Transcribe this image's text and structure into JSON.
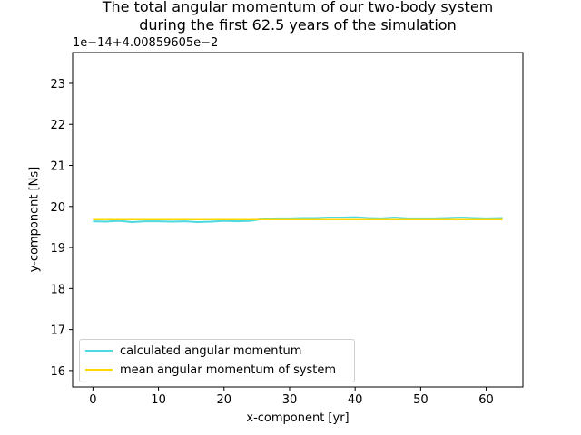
{
  "chart_data": {
    "type": "line",
    "title": [
      "The total angular momentum of our two-body system",
      "during the first 62.5 years of the simulation"
    ],
    "xlabel": "x-component [yr]",
    "ylabel": "y-component [Ns]",
    "y_offset_label": "1e−14+4.00859605e−2",
    "xlim": [
      -3.1,
      65.6
    ],
    "ylim": [
      15.6,
      23.75
    ],
    "xticks": [
      0,
      10,
      20,
      30,
      40,
      50,
      60
    ],
    "yticks": [
      16,
      17,
      18,
      19,
      20,
      21,
      22,
      23
    ],
    "grid": false,
    "legend_position": "lower-left",
    "series": [
      {
        "name": "calculated angular momentum",
        "color": "#4dd9e0",
        "x": [
          0,
          2,
          4,
          6,
          8,
          10,
          12,
          14,
          16,
          18,
          20,
          22,
          24,
          26,
          28,
          30,
          32,
          34,
          36,
          38,
          40,
          42,
          44,
          46,
          48,
          50,
          52,
          54,
          56,
          58,
          60,
          62.5
        ],
        "y": [
          19.64,
          19.63,
          19.65,
          19.62,
          19.64,
          19.64,
          19.63,
          19.64,
          19.62,
          19.63,
          19.65,
          19.64,
          19.65,
          19.7,
          19.71,
          19.71,
          19.72,
          19.72,
          19.73,
          19.73,
          19.74,
          19.72,
          19.71,
          19.73,
          19.71,
          19.71,
          19.71,
          19.72,
          19.73,
          19.72,
          19.71,
          19.72
        ]
      },
      {
        "name": "mean angular momentum of system",
        "color": "#ffd700",
        "x": [
          0,
          62.5
        ],
        "y": [
          19.68,
          19.68
        ]
      }
    ]
  }
}
